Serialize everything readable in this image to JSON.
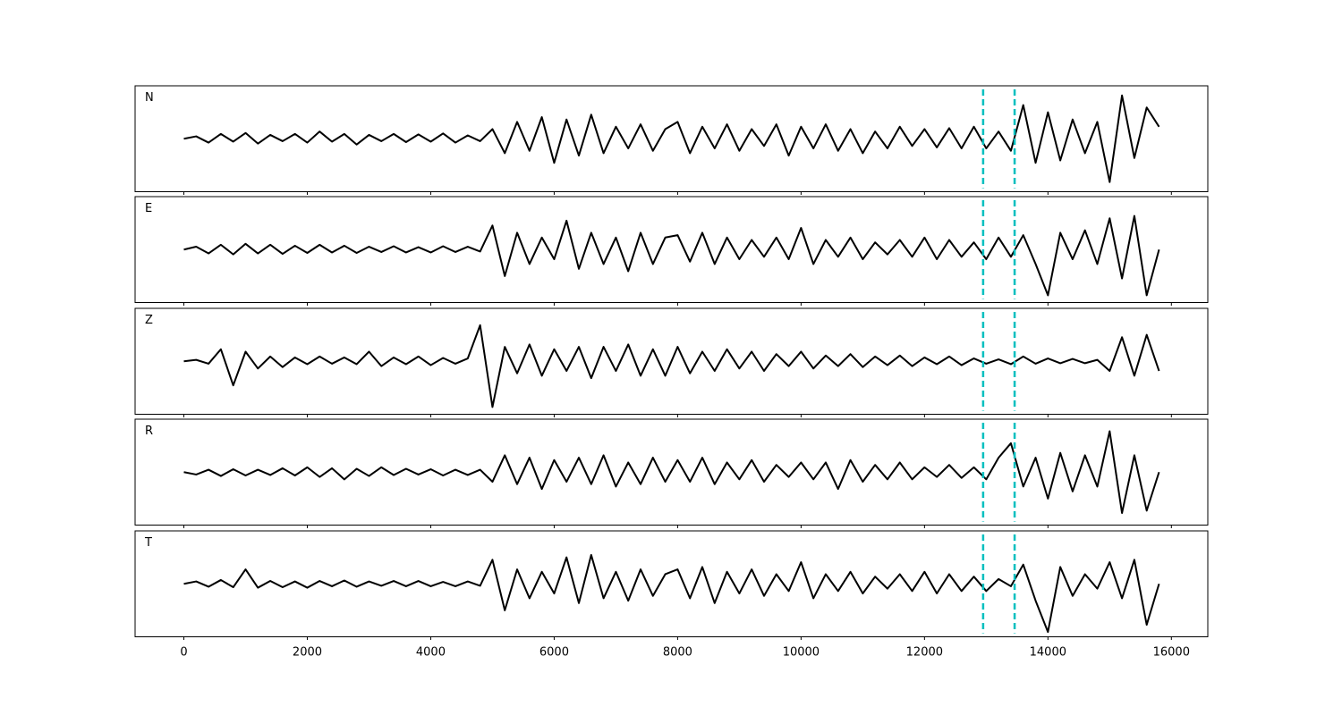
{
  "chart_data": {
    "type": "line",
    "layout": "stacked",
    "x": [
      0,
      200,
      400,
      600,
      800,
      1000,
      1200,
      1400,
      1600,
      1800,
      2000,
      2200,
      2400,
      2600,
      2800,
      3000,
      3200,
      3400,
      3600,
      3800,
      4000,
      4200,
      4400,
      4600,
      4800,
      5000,
      5200,
      5400,
      5600,
      5800,
      6000,
      6200,
      6400,
      6600,
      6800,
      7000,
      7200,
      7400,
      7600,
      7800,
      8000,
      8200,
      8400,
      8600,
      8800,
      9000,
      9200,
      9400,
      9600,
      9800,
      10000,
      10200,
      10400,
      10600,
      10800,
      11000,
      11200,
      11400,
      11600,
      11800,
      12000,
      12200,
      12400,
      12600,
      12800,
      13000,
      13200,
      13400,
      13600,
      13800,
      14000,
      14200,
      14400,
      14600,
      14800,
      15000,
      15200,
      15400,
      15600,
      15800
    ],
    "xlim": [
      -790,
      16590
    ],
    "xticks": [
      0,
      2000,
      4000,
      6000,
      8000,
      10000,
      12000,
      14000,
      16000
    ],
    "ylim": [
      -1.1,
      1.1
    ],
    "vlines": [
      12950,
      13460
    ],
    "vline_color": "#00bfbf",
    "series": [
      {
        "name": "N",
        "color": "#000000",
        "values": [
          0,
          0.05,
          -0.08,
          0.1,
          -0.06,
          0.12,
          -0.1,
          0.08,
          -0.05,
          0.1,
          -0.08,
          0.15,
          -0.06,
          0.1,
          -0.12,
          0.08,
          -0.05,
          0.1,
          -0.07,
          0.09,
          -0.06,
          0.11,
          -0.08,
          0.07,
          -0.05,
          0.2,
          -0.3,
          0.35,
          -0.25,
          0.45,
          -0.5,
          0.4,
          -0.35,
          0.5,
          -0.3,
          0.25,
          -0.2,
          0.3,
          -0.25,
          0.2,
          0.35,
          -0.3,
          0.25,
          -0.2,
          0.3,
          -0.25,
          0.2,
          -0.15,
          0.3,
          -0.35,
          0.25,
          -0.2,
          0.3,
          -0.25,
          0.2,
          -0.3,
          0.15,
          -0.2,
          0.25,
          -0.15,
          0.2,
          -0.18,
          0.22,
          -0.2,
          0.25,
          -0.2,
          0.15,
          -0.25,
          0.7,
          -0.5,
          0.55,
          -0.45,
          0.4,
          -0.3,
          0.35,
          -0.9,
          0.9,
          -0.4,
          0.65,
          0.25
        ]
      },
      {
        "name": "E",
        "color": "#000000",
        "values": [
          0,
          0.06,
          -0.08,
          0.1,
          -0.1,
          0.12,
          -0.08,
          0.1,
          -0.09,
          0.08,
          -0.07,
          0.1,
          -0.06,
          0.08,
          -0.07,
          0.06,
          -0.05,
          0.07,
          -0.06,
          0.05,
          -0.06,
          0.07,
          -0.05,
          0.06,
          -0.04,
          0.5,
          -0.55,
          0.35,
          -0.3,
          0.25,
          -0.2,
          0.6,
          -0.4,
          0.35,
          -0.3,
          0.25,
          -0.45,
          0.35,
          -0.3,
          0.25,
          0.3,
          -0.25,
          0.35,
          -0.3,
          0.25,
          -0.2,
          0.2,
          -0.15,
          0.25,
          -0.2,
          0.45,
          -0.3,
          0.2,
          -0.15,
          0.25,
          -0.2,
          0.15,
          -0.1,
          0.2,
          -0.15,
          0.25,
          -0.2,
          0.2,
          -0.15,
          0.15,
          -0.2,
          0.25,
          -0.15,
          0.3,
          -0.3,
          -0.95,
          0.35,
          -0.2,
          0.4,
          -0.3,
          0.65,
          -0.6,
          0.7,
          -0.95,
          0.0
        ]
      },
      {
        "name": "Z",
        "color": "#000000",
        "values": [
          0,
          0.03,
          -0.05,
          0.25,
          -0.5,
          0.2,
          -0.15,
          0.1,
          -0.12,
          0.08,
          -0.06,
          0.1,
          -0.05,
          0.08,
          -0.06,
          0.2,
          -0.1,
          0.08,
          -0.06,
          0.1,
          -0.08,
          0.07,
          -0.05,
          0.06,
          0.75,
          -0.95,
          0.3,
          -0.25,
          0.35,
          -0.3,
          0.25,
          -0.2,
          0.3,
          -0.35,
          0.3,
          -0.2,
          0.35,
          -0.3,
          0.25,
          -0.3,
          0.3,
          -0.25,
          0.2,
          -0.2,
          0.25,
          -0.15,
          0.2,
          -0.2,
          0.15,
          -0.1,
          0.2,
          -0.15,
          0.12,
          -0.1,
          0.15,
          -0.12,
          0.1,
          -0.08,
          0.12,
          -0.1,
          0.08,
          -0.06,
          0.1,
          -0.08,
          0.06,
          -0.05,
          0.04,
          -0.06,
          0.1,
          -0.05,
          0.06,
          -0.04,
          0.05,
          -0.04,
          0.03,
          -0.2,
          0.5,
          -0.3,
          0.55,
          -0.2
        ]
      },
      {
        "name": "R",
        "color": "#000000",
        "values": [
          0,
          -0.05,
          0.05,
          -0.08,
          0.06,
          -0.07,
          0.05,
          -0.06,
          0.08,
          -0.07,
          0.1,
          -0.1,
          0.08,
          -0.15,
          0.07,
          -0.08,
          0.1,
          -0.06,
          0.07,
          -0.05,
          0.06,
          -0.07,
          0.05,
          -0.06,
          0.05,
          -0.2,
          0.35,
          -0.25,
          0.3,
          -0.35,
          0.25,
          -0.2,
          0.3,
          -0.25,
          0.35,
          -0.3,
          0.2,
          -0.25,
          0.3,
          -0.2,
          0.25,
          -0.2,
          0.3,
          -0.25,
          0.2,
          -0.15,
          0.25,
          -0.2,
          0.15,
          -0.1,
          0.2,
          -0.15,
          0.2,
          -0.35,
          0.25,
          -0.2,
          0.15,
          -0.15,
          0.2,
          -0.15,
          0.1,
          -0.1,
          0.15,
          -0.12,
          0.1,
          -0.15,
          0.3,
          0.6,
          -0.3,
          0.3,
          -0.55,
          0.4,
          -0.4,
          0.35,
          -0.3,
          0.85,
          -0.85,
          0.35,
          -0.8,
          0.0
        ]
      },
      {
        "name": "T",
        "color": "#000000",
        "values": [
          0,
          0.05,
          -0.06,
          0.08,
          -0.07,
          0.3,
          -0.08,
          0.06,
          -0.07,
          0.05,
          -0.08,
          0.06,
          -0.05,
          0.07,
          -0.06,
          0.05,
          -0.04,
          0.06,
          -0.05,
          0.06,
          -0.05,
          0.04,
          -0.05,
          0.05,
          -0.04,
          0.5,
          -0.55,
          0.3,
          -0.3,
          0.25,
          -0.2,
          0.55,
          -0.4,
          0.6,
          -0.3,
          0.25,
          -0.35,
          0.3,
          -0.25,
          0.2,
          0.3,
          -0.3,
          0.35,
          -0.4,
          0.25,
          -0.2,
          0.3,
          -0.25,
          0.2,
          -0.15,
          0.45,
          -0.3,
          0.2,
          -0.15,
          0.25,
          -0.2,
          0.15,
          -0.1,
          0.2,
          -0.15,
          0.25,
          -0.2,
          0.2,
          -0.15,
          0.15,
          -0.15,
          0.1,
          -0.05,
          0.4,
          -0.35,
          -1.0,
          0.35,
          -0.25,
          0.2,
          -0.1,
          0.45,
          -0.3,
          0.5,
          -0.85,
          0.0
        ]
      }
    ]
  }
}
